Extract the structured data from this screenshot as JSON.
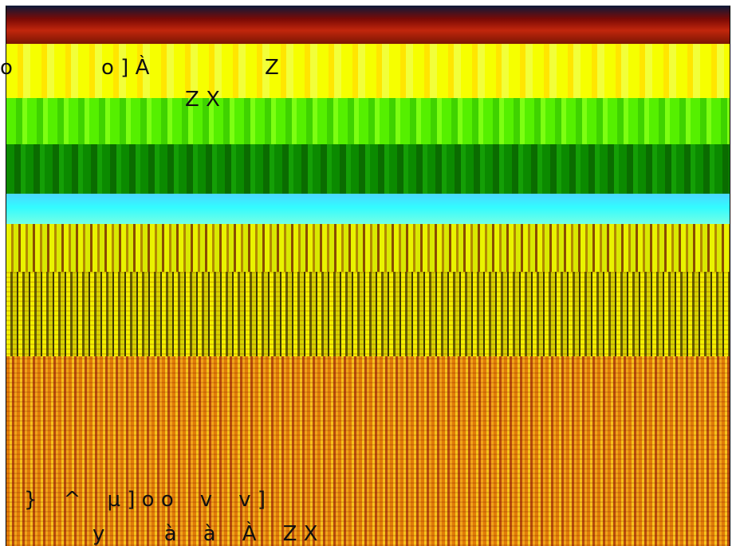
{
  "glyph_lines": {
    "line1_a": "o",
    "line1_b": "o ] À",
    "line1_c": "Z",
    "line2": "Z X",
    "line3": "}    ^    µ ] o o    v    v ]",
    "line4": "y         à    à    À    Z X"
  },
  "colors": {
    "yellow": "#f6ff00",
    "light_green": "#55f000",
    "dark_green": "#0b8a00",
    "cyan": "#33fbff",
    "olive": "#656000",
    "orange": "#e07b08",
    "dark_red": "#7a0a05"
  }
}
